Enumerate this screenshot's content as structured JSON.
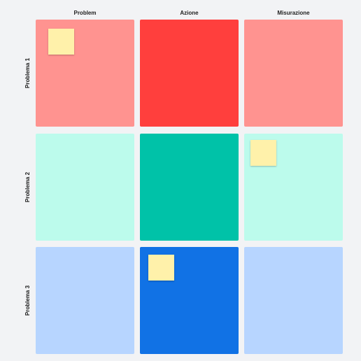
{
  "columns": [
    "Problem",
    "Azione",
    "Misurazione"
  ],
  "rows": [
    "Problema 1",
    "Problema 2",
    "Problema 3"
  ],
  "colors": {
    "background": "#f2f3f5",
    "row1_light": "#ff9390",
    "row1_dark": "#ff3f3d",
    "row2_light": "#bcfbec",
    "row2_dark": "#00c2a8",
    "row3_light": "#b7d5ff",
    "row3_dark": "#1172e5",
    "sticky_note": "#fff1aa"
  },
  "sticky_notes": [
    {
      "row": 1,
      "column": "Problem",
      "text": ""
    },
    {
      "row": 2,
      "column": "Misurazione",
      "text": ""
    },
    {
      "row": 3,
      "column": "Azione",
      "text": ""
    }
  ]
}
